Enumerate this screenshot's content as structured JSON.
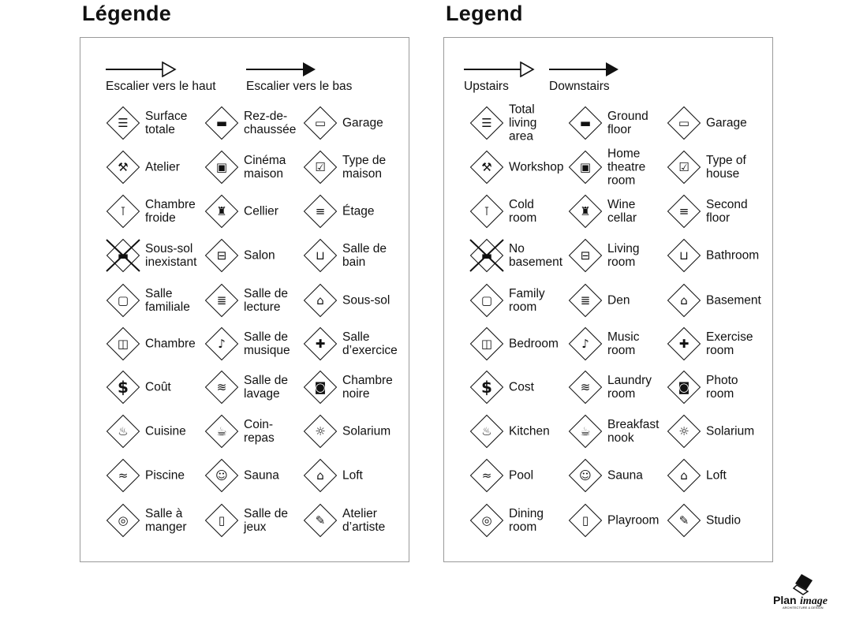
{
  "fr": {
    "title": "Légende",
    "stairs_up": "Escalier vers le haut",
    "stairs_down": "Escalier vers le bas",
    "items": [
      "Surface\ntotale",
      "Rez-de-\nchaussée",
      "Garage",
      "Atelier",
      "Cinéma\nmaison",
      "Type de\nmaison",
      "Chambre\nfroide",
      "Cellier",
      "Étage",
      "Sous-sol\ninexistant",
      "Salon",
      "Salle de\nbain",
      "Salle\nfamiliale",
      "Salle de\nlecture",
      "Sous-sol",
      "Chambre",
      "Salle de\nmusique",
      "Salle\nd’exercice",
      "Coût",
      "Salle de\nlavage",
      "Chambre\nnoire",
      "Cuisine",
      "Coin-\nrepas",
      "Solarium",
      "Piscine",
      "Sauna",
      "Loft",
      "Salle à\nmanger",
      "Salle de\njeux",
      "Atelier\nd’artiste"
    ]
  },
  "en": {
    "title": "Legend",
    "stairs_up": "Upstairs",
    "stairs_down": "Downstairs",
    "items": [
      "Total\nliving\narea",
      "Ground\nfloor",
      "Garage",
      "Workshop",
      "Home\ntheatre\nroom",
      "Type of\nhouse",
      "Cold\nroom",
      "Wine\ncellar",
      "Second\nfloor",
      "No\nbasement",
      "Living\nroom",
      "Bathroom",
      "Family\nroom",
      "Den",
      "Basement",
      "Bedroom",
      "Music\nroom",
      "Exercise\nroom",
      "Cost",
      "Laundry\nroom",
      "Photo\nroom",
      "Kitchen",
      "Breakfast\nnook",
      "Solarium",
      "Pool",
      "Sauna",
      "Loft",
      "Dining\nroom",
      "Playroom",
      "Studio"
    ]
  },
  "icons": [
    "total-area-icon",
    "ground-floor-icon",
    "garage-icon",
    "hammer-icon",
    "home-theatre-icon",
    "house-type-icon",
    "thermometer-icon",
    "wine-icon",
    "second-floor-icon",
    "no-basement-icon",
    "sofa-icon",
    "toilet-icon",
    "tv-icon",
    "book-icon",
    "basement-icon",
    "bed-icon",
    "music-note-icon",
    "weightlifter-icon",
    "dollar-icon",
    "laundry-icon",
    "camera-icon",
    "pot-icon",
    "cup-icon",
    "sun-icon",
    "pool-icon",
    "sauna-icon",
    "loft-icon",
    "plate-icon",
    "door-icon",
    "palette-icon"
  ],
  "glyphs": [
    "☰",
    "▬",
    "▭",
    "⚒",
    "▣",
    "☑",
    "⊺",
    "♜",
    "≡",
    "▬",
    "⊟",
    "⊔",
    "▢",
    "≣",
    "⌂",
    "◫",
    "♪",
    "✚",
    "$",
    "≋",
    "◙",
    "♨",
    "☕",
    "☼",
    "≈",
    "☺",
    "⌂",
    "◎",
    "▯",
    "✎"
  ],
  "logo": {
    "text": "PlanImage",
    "subtitle": "ARCHITECTURE & DESIGN"
  }
}
